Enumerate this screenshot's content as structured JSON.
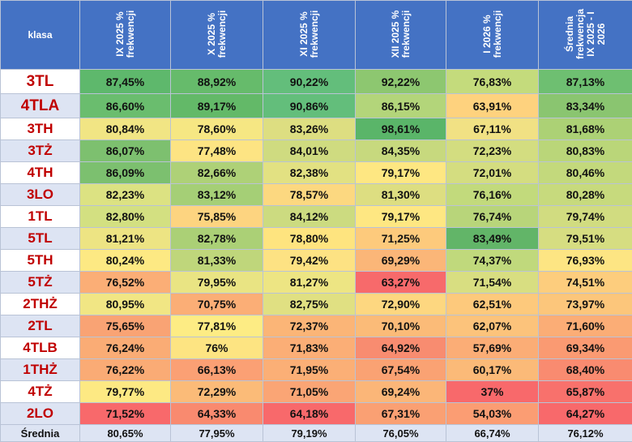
{
  "header": {
    "klasa": "klasa",
    "columns": [
      "IX 2025 %\nfrekwencji",
      "X 2025 %\nfrekwencji",
      "XI 2025 %\nfrekwencji",
      "XII 2025 %\nfrekwencji",
      "I 2026 %\nfrekwencji",
      "Średnia\nfrekwencja\nIX 2025 - I\n2026"
    ]
  },
  "rows": [
    {
      "name": "3TL",
      "values": [
        "87,45%",
        "88,92%",
        "90,22%",
        "92,22%",
        "76,83%",
        "87,13%"
      ],
      "colors": [
        "#5eb86c",
        "#66bb6b",
        "#63be7b",
        "#8dc770",
        "#c4db7c",
        "#6ebf71"
      ]
    },
    {
      "name": "4TLA",
      "values": [
        "86,60%",
        "89,17%",
        "90,86%",
        "86,15%",
        "63,91%",
        "83,34%"
      ],
      "colors": [
        "#6abd6e",
        "#63b968",
        "#63be7b",
        "#b3d57a",
        "#fed27e",
        "#8ac570"
      ]
    },
    {
      "name": "3TH",
      "values": [
        "80,84%",
        "78,60%",
        "83,26%",
        "98,61%",
        "67,11%",
        "81,68%"
      ],
      "colors": [
        "#f1e584",
        "#f6e783",
        "#ddde81",
        "#5ab569",
        "#f1e184",
        "#acd175"
      ]
    },
    {
      "name": "3TŻ",
      "values": [
        "86,07%",
        "77,48%",
        "84,01%",
        "84,35%",
        "72,23%",
        "80,83%"
      ],
      "colors": [
        "#7dc06f",
        "#fde483",
        "#cfdb80",
        "#c7d97e",
        "#d3dd80",
        "#bad679"
      ]
    },
    {
      "name": "4TH",
      "values": [
        "86,09%",
        "82,66%",
        "82,38%",
        "79,17%",
        "72,01%",
        "80,46%"
      ],
      "colors": [
        "#7cc06f",
        "#aed177",
        "#e2e182",
        "#fee782",
        "#d4dd80",
        "#c3d97c"
      ]
    },
    {
      "name": "3LO",
      "values": [
        "82,23%",
        "83,12%",
        "78,57%",
        "81,30%",
        "76,16%",
        "80,28%"
      ],
      "colors": [
        "#dce282",
        "#a5cf76",
        "#fcd880",
        "#ddde81",
        "#c2da7c",
        "#c7da7d"
      ]
    },
    {
      "name": "1TL",
      "values": [
        "82,80%",
        "75,85%",
        "84,12%",
        "79,17%",
        "76,74%",
        "79,74%"
      ],
      "colors": [
        "#d3e081",
        "#fdd480",
        "#ccdb80",
        "#fee782",
        "#b8d57a",
        "#d1dc80"
      ]
    },
    {
      "name": "5TL",
      "values": [
        "81,21%",
        "82,78%",
        "78,80%",
        "71,25%",
        "83,49%",
        "79,51%"
      ],
      "colors": [
        "#ede483",
        "#abd076",
        "#fee47f",
        "#fdca7c",
        "#62b568",
        "#d6dd81"
      ]
    },
    {
      "name": "5TH",
      "values": [
        "80,24%",
        "81,33%",
        "79,42%",
        "69,29%",
        "74,37%",
        "76,93%"
      ],
      "colors": [
        "#fde983",
        "#bfd67b",
        "#fde283",
        "#fbb678",
        "#c0d97c",
        "#fde583"
      ]
    },
    {
      "name": "5TŻ",
      "values": [
        "76,52%",
        "79,95%",
        "81,27%",
        "63,27%",
        "71,54%",
        "74,51%"
      ],
      "colors": [
        "#fbae76",
        "#e9e483",
        "#ede583",
        "#f76a6b",
        "#d8de81",
        "#fdcd7d"
      ]
    },
    {
      "name": "2THŻ",
      "values": [
        "80,95%",
        "70,75%",
        "82,75%",
        "72,90%",
        "62,51%",
        "73,97%"
      ],
      "colors": [
        "#f1e684",
        "#fbae76",
        "#e0e082",
        "#fdd780",
        "#fdc97c",
        "#fcc67b"
      ]
    },
    {
      "name": "2TL",
      "values": [
        "75,65%",
        "77,81%",
        "72,37%",
        "70,10%",
        "62,07%",
        "71,60%"
      ],
      "colors": [
        "#f9a374",
        "#fdec84",
        "#fbb577",
        "#fbbb78",
        "#fcc37b",
        "#fbad76"
      ]
    },
    {
      "name": "4TLB",
      "values": [
        "76,24%",
        "76%",
        "71,83%",
        "64,92%",
        "57,69%",
        "69,34%"
      ],
      "colors": [
        "#faac75",
        "#fde482",
        "#fbae76",
        "#f88c70",
        "#fbad76",
        "#fa9a72"
      ]
    },
    {
      "name": "1THŻ",
      "values": [
        "76,22%",
        "66,13%",
        "71,95%",
        "67,54%",
        "60,17%",
        "68,40%"
      ],
      "colors": [
        "#faab75",
        "#fba074",
        "#fbaf76",
        "#faa273",
        "#fbba78",
        "#f98b70"
      ]
    },
    {
      "name": "4TŻ",
      "values": [
        "79,77%",
        "72,29%",
        "71,05%",
        "69,24%",
        "37%",
        "65,87%"
      ],
      "colors": [
        "#fde983",
        "#fbbb78",
        "#faa575",
        "#fbb678",
        "#f8696b",
        "#f8716c"
      ]
    },
    {
      "name": "2LO",
      "values": [
        "71,52%",
        "64,33%",
        "64,18%",
        "67,31%",
        "54,03%",
        "64,27%"
      ],
      "colors": [
        "#f8696b",
        "#f98a6f",
        "#f8696b",
        "#faa073",
        "#fb9d73",
        "#f8696b"
      ]
    }
  ],
  "average": {
    "name": "Średnia",
    "values": [
      "80,65%",
      "77,95%",
      "79,19%",
      "76,05%",
      "66,74%",
      "76,12%"
    ]
  }
}
